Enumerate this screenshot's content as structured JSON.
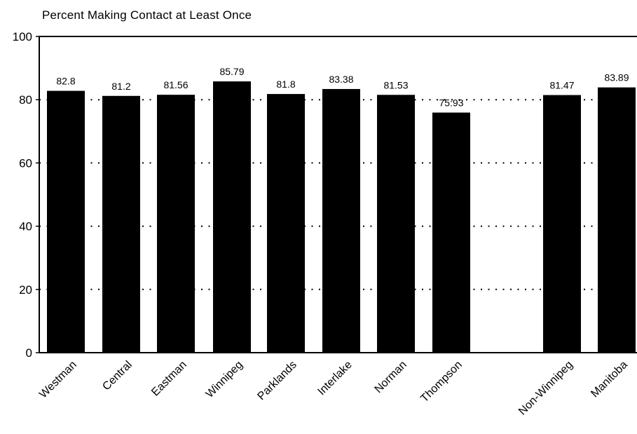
{
  "chart_data": {
    "type": "bar",
    "title": "Percent Making Contact at Least Once",
    "xlabel": "",
    "ylabel": "",
    "ylim": [
      0,
      100
    ],
    "yticks": [
      "0",
      "20",
      "40",
      "60",
      "80",
      "100"
    ],
    "grid": true,
    "categories": [
      "Westman",
      "Central",
      "Eastman",
      "Winnipeg",
      "Parklands",
      "Interlake",
      "Norman",
      "Thompson",
      "Non-Winnipeg",
      "Manitoba"
    ],
    "values": [
      82.8,
      81.2,
      81.56,
      85.79,
      81.8,
      83.38,
      81.53,
      75.93,
      81.47,
      83.89
    ],
    "value_labels": [
      "82.8",
      "81.2",
      "81.56",
      "85.79",
      "81.8",
      "83.38",
      "81.53",
      "75:93",
      "81.47",
      "83.89"
    ],
    "bar_color": "#000000"
  }
}
